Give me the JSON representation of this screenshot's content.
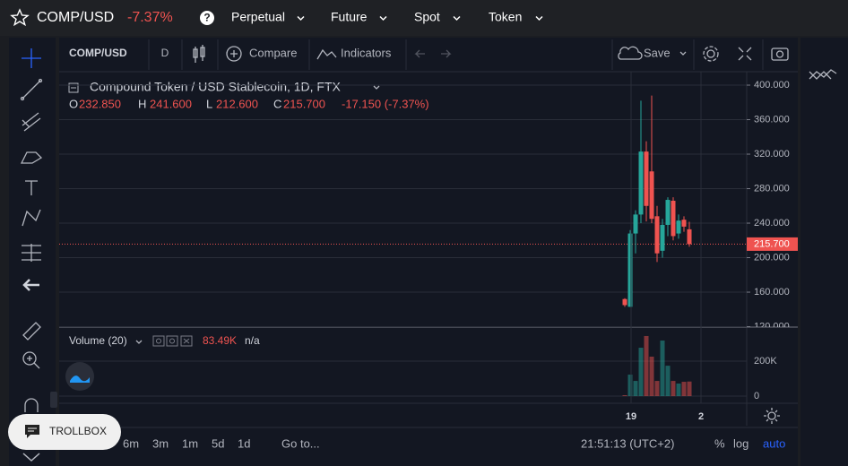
{
  "top_bar": {
    "symbol": "COMP/USD",
    "change": "-7.37%",
    "help": "?",
    "menus": [
      "Perpetual",
      "Future",
      "Spot",
      "Token"
    ]
  },
  "toolbar": {
    "symbol": "COMP/USD",
    "interval": "D",
    "compare": "Compare",
    "indicators": "Indicators",
    "save": "Save"
  },
  "legend": {
    "title": "Compound Token / USD Stablecoin, 1D, FTX",
    "ohlc": [
      {
        "key": "O",
        "value": "232.850"
      },
      {
        "key": "H",
        "value": "241.600"
      },
      {
        "key": "L",
        "value": "212.600"
      },
      {
        "key": "C",
        "value": "215.700"
      }
    ],
    "change": "-17.150 (-7.37%)"
  },
  "chart": {
    "type": "candlestick",
    "open": [
      152,
      143,
      228,
      250,
      323,
      300,
      248,
      208,
      238,
      266,
      228,
      244,
      232.85
    ],
    "high": [
      153,
      232,
      255,
      382,
      335,
      388,
      260,
      245,
      270,
      270,
      250,
      248,
      241.6
    ],
    "low": [
      143,
      143,
      205,
      240,
      242,
      240,
      195,
      200,
      225,
      220,
      222,
      230,
      212.6
    ],
    "close": [
      145,
      228,
      250,
      323,
      260,
      245,
      205,
      238,
      267,
      225,
      243,
      236,
      215.7
    ],
    "ylim": [
      119.5,
      415.6
    ],
    "yticks": [
      {
        "value": 400,
        "label": "400.000"
      },
      {
        "value": 360,
        "label": "360.000"
      },
      {
        "value": 320,
        "label": "320.000"
      },
      {
        "value": 280,
        "label": "280.000"
      },
      {
        "value": 240,
        "label": "240.000"
      },
      {
        "value": 200,
        "label": "200.000"
      },
      {
        "value": 160,
        "label": "160.000"
      },
      {
        "value": 120,
        "label": "120.000"
      }
    ],
    "last_price": {
      "value": 215.7,
      "label": "215.700"
    },
    "up_color": "#26a69a",
    "down_color": "#ef5350"
  },
  "volume": {
    "title": "Volume (20)",
    "last": "83.49K",
    "ma": "n/a",
    "values": [
      5,
      123,
      87,
      277,
      344,
      226,
      87,
      318,
      174,
      87,
      72,
      82,
      83.49
    ],
    "ylim": [
      -41,
      390
    ],
    "yticks": [
      {
        "value": 200,
        "label": "200K"
      },
      0
    ]
  },
  "time_axis": [
    "19",
    "2"
  ],
  "bottom_bar": {
    "ranges": [
      "6m",
      "3m",
      "1m",
      "5d",
      "1d"
    ],
    "goto": "Go to...",
    "clock": "21:51:13 (UTC+2)",
    "percent": "%",
    "log": "log",
    "auto": "auto"
  },
  "trollbox": "TROLLBOX"
}
